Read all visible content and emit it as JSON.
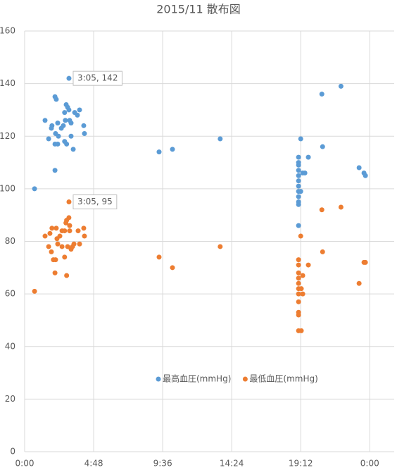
{
  "chart_data": {
    "type": "scatter",
    "title": "2015/11 散布図",
    "xlim": [
      0,
      25.7
    ],
    "ylim": [
      0,
      160
    ],
    "xticks": [
      {
        "value": 0,
        "label": "0:00"
      },
      {
        "value": 4.8,
        "label": "4:48"
      },
      {
        "value": 9.6,
        "label": "9:36"
      },
      {
        "value": 14.4,
        "label": "14:24"
      },
      {
        "value": 19.2,
        "label": "19:12"
      },
      {
        "value": 24,
        "label": "0:00"
      }
    ],
    "yticks": [
      0,
      20,
      40,
      60,
      80,
      100,
      120,
      140,
      160
    ],
    "grid": true,
    "legend": "bottom",
    "series": [
      {
        "name": "最高血圧(mmHg)",
        "color": "#5b9bd5",
        "x": [
          0.69,
          1.42,
          1.67,
          1.86,
          1.9,
          2.11,
          2.2,
          2.11,
          2.3,
          2.15,
          2.35,
          2.11,
          2.3,
          2.55,
          2.69,
          2.78,
          2.89,
          2.99,
          3.08,
          2.83,
          2.78,
          2.92,
          3.083,
          3.13,
          3.23,
          3.23,
          3.38,
          3.48,
          3.67,
          3.82,
          4.11,
          4.16,
          9.35,
          10.28,
          13.6,
          19.05,
          19.05,
          19.05,
          19.05,
          19.05,
          19.05,
          19.05,
          19.05,
          19.05,
          19.05,
          19.05,
          19.05,
          19.2,
          19.2,
          19.34,
          19.49,
          19.73,
          20.67,
          20.72,
          22.0,
          23.26,
          23.6,
          23.7
        ],
        "values": [
          100,
          126,
          119,
          123,
          124,
          135,
          134,
          117,
          117,
          121,
          120,
          107,
          125,
          123,
          124,
          129,
          132,
          131,
          130,
          126,
          118,
          117,
          142,
          126,
          125,
          120,
          115,
          129,
          128,
          130,
          124,
          121,
          114,
          115,
          119,
          112,
          110,
          109,
          107,
          105,
          103,
          101,
          99,
          97,
          95,
          94,
          86,
          119,
          99,
          106,
          106,
          112,
          136,
          116,
          139,
          108,
          106,
          105
        ]
      },
      {
        "name": "最低血圧(mmHg)",
        "color": "#ed7d31",
        "x": [
          0.69,
          1.42,
          1.67,
          1.76,
          1.9,
          1.86,
          2.0,
          2.15,
          2.11,
          2.2,
          2.25,
          2.3,
          2.45,
          2.6,
          2.6,
          2.78,
          2.87,
          2.92,
          3.08,
          3.083,
          3.13,
          2.78,
          2.92,
          2.99,
          3.13,
          3.23,
          3.33,
          3.43,
          3.72,
          3.82,
          4.11,
          4.16,
          9.35,
          10.28,
          13.6,
          19.05,
          19.05,
          19.05,
          19.05,
          19.05,
          19.05,
          19.05,
          19.05,
          19.05,
          19.05,
          19.05,
          19.2,
          19.24,
          19.24,
          19.34,
          19.34,
          19.73,
          20.67,
          20.72,
          22.0,
          23.26,
          23.6,
          23.7
        ],
        "values": [
          61,
          82,
          78,
          83,
          85,
          76,
          73,
          73,
          68,
          85,
          81,
          79,
          82,
          78,
          84,
          84,
          87,
          88,
          89,
          95,
          86,
          74,
          67,
          78,
          84,
          77,
          78,
          79,
          84,
          79,
          85,
          82,
          74,
          70,
          78,
          73,
          71,
          68,
          66,
          64,
          62,
          60,
          57,
          53,
          52,
          46,
          82,
          62,
          46,
          67,
          60,
          71,
          92,
          76,
          93,
          64,
          72,
          72
        ]
      }
    ],
    "annotations": [
      {
        "text": "3:05, 142",
        "x": 3.083,
        "y": 142
      },
      {
        "text": "3:05, 95",
        "x": 3.083,
        "y": 95
      }
    ]
  }
}
